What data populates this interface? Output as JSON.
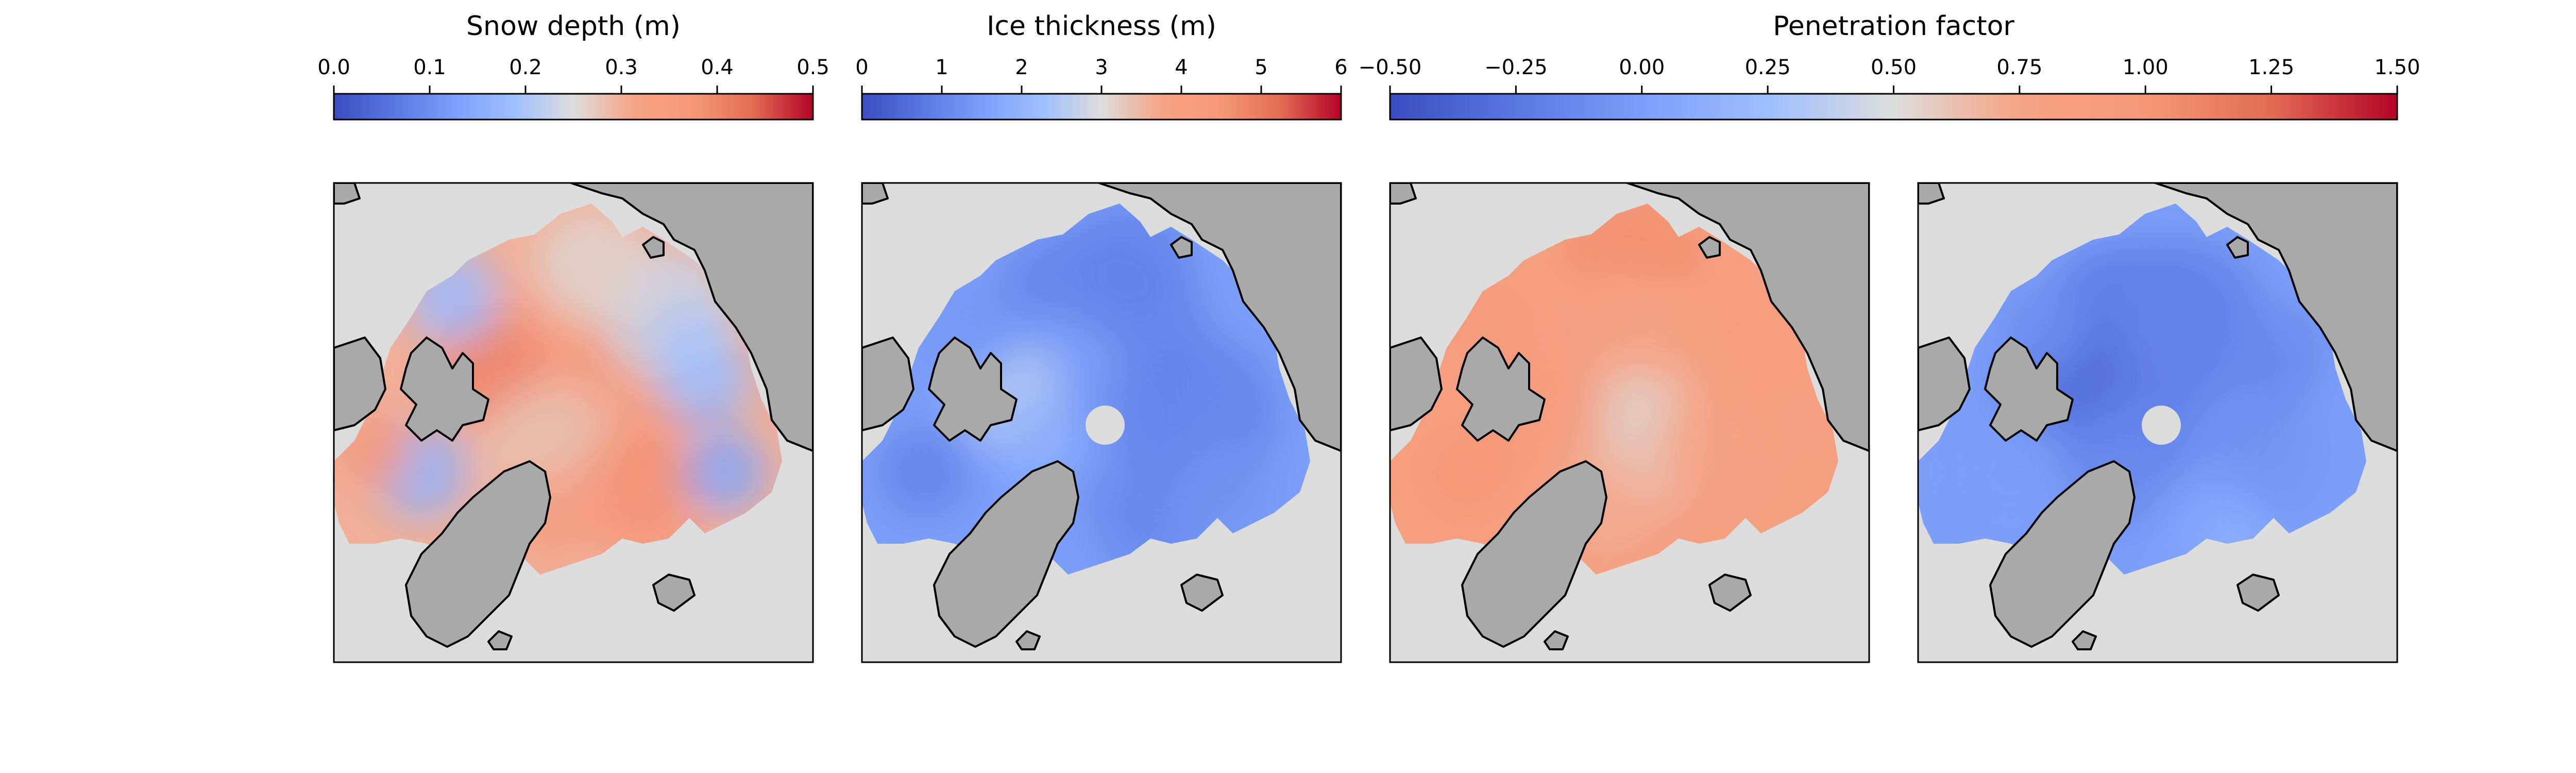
{
  "colors": {
    "land": "#a9a9a9",
    "open_water": "#dcdcdc",
    "coastline": "#000000",
    "colormap": "coolwarm",
    "cmap_low": "#3b4cc0",
    "cmap_mid": "#dddddd",
    "cmap_high": "#b40426"
  },
  "chart_data": [
    {
      "type": "colorbar",
      "title": "Snow depth (m)",
      "range": [
        0.0,
        0.5
      ],
      "ticks": [
        0.0,
        0.1,
        0.2,
        0.3,
        0.4,
        0.5
      ],
      "tick_labels": [
        "0.0",
        "0.1",
        "0.2",
        "0.3",
        "0.4",
        "0.5"
      ],
      "colormap": "coolwarm",
      "applies_to_maps": [
        "map-1"
      ]
    },
    {
      "type": "colorbar",
      "title": "Ice thickness (m)",
      "range": [
        0,
        6
      ],
      "ticks": [
        0,
        1,
        2,
        3,
        4,
        5,
        6
      ],
      "tick_labels": [
        "0",
        "1",
        "2",
        "3",
        "4",
        "5",
        "6"
      ],
      "colormap": "coolwarm",
      "applies_to_maps": [
        "map-2"
      ]
    },
    {
      "type": "colorbar",
      "title": "Penetration factor",
      "range": [
        -0.5,
        1.5
      ],
      "ticks": [
        -0.5,
        -0.25,
        0.0,
        0.25,
        0.5,
        0.75,
        1.0,
        1.25,
        1.5
      ],
      "tick_labels": [
        "−0.50",
        "−0.25",
        "0.00",
        "0.25",
        "0.50",
        "0.75",
        "1.00",
        "1.25",
        "1.50"
      ],
      "colormap": "coolwarm",
      "applies_to_maps": [
        "map-3",
        "map-4"
      ]
    },
    {
      "type": "heatmap",
      "projection": "north-polar-stereographic",
      "variable_colorbar": "Snow depth (m)",
      "typical_value": 0.3,
      "range_shown": [
        0.12,
        0.45
      ],
      "pole_hole": false
    },
    {
      "type": "heatmap",
      "projection": "north-polar-stereographic",
      "variable_colorbar": "Ice thickness (m)",
      "typical_value": 1.5,
      "range_shown": [
        0.5,
        3.5
      ],
      "pole_hole": true
    },
    {
      "type": "heatmap",
      "projection": "north-polar-stereographic",
      "variable_colorbar": "Penetration factor",
      "typical_value": 0.85,
      "range_shown": [
        0.4,
        1.3
      ],
      "pole_hole": false
    },
    {
      "type": "heatmap",
      "projection": "north-polar-stereographic",
      "variable_colorbar": "Penetration factor",
      "typical_value": 0.0,
      "range_shown": [
        -0.4,
        0.35
      ],
      "pole_hole": true
    }
  ]
}
